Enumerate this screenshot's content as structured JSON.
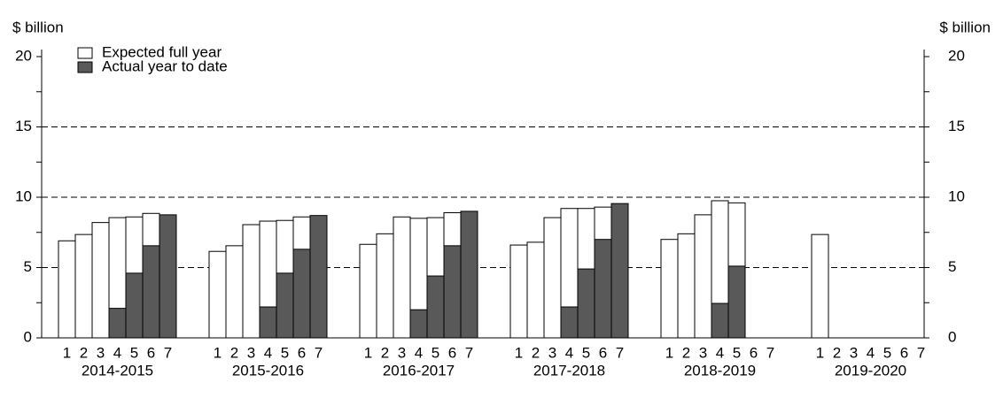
{
  "chart_data": {
    "type": "bar",
    "y_label": "$ billion",
    "y2_label": "$ billion",
    "groups": [
      "2014-2015",
      "2015-2016",
      "2016-2017",
      "2017-2018",
      "2018-2019",
      "2019-2020"
    ],
    "subcategories": [
      "1",
      "2",
      "3",
      "4",
      "5",
      "6",
      "7"
    ],
    "series": [
      {
        "name": "Expected full year",
        "color": "#ffffff",
        "values": [
          [
            6.9,
            7.35,
            8.2,
            8.55,
            8.6,
            8.85,
            null
          ],
          [
            6.15,
            6.55,
            8.05,
            8.3,
            8.35,
            8.6,
            null
          ],
          [
            6.65,
            7.4,
            8.6,
            8.5,
            8.55,
            8.9,
            null
          ],
          [
            6.6,
            6.8,
            8.55,
            9.2,
            9.2,
            9.3,
            null
          ],
          [
            7.0,
            7.4,
            8.75,
            9.75,
            9.6,
            null,
            null
          ],
          [
            7.35,
            null,
            null,
            null,
            null,
            null,
            null
          ]
        ]
      },
      {
        "name": "Actual year to date",
        "color": "#595959",
        "values": [
          [
            null,
            null,
            null,
            2.1,
            4.6,
            6.55,
            8.75
          ],
          [
            null,
            null,
            null,
            2.2,
            4.6,
            6.3,
            8.7
          ],
          [
            null,
            null,
            null,
            2.0,
            4.4,
            6.55,
            9.0
          ],
          [
            null,
            null,
            null,
            2.2,
            4.9,
            7.0,
            9.55
          ],
          [
            null,
            null,
            null,
            2.45,
            5.1,
            null,
            null
          ],
          [
            null,
            null,
            null,
            null,
            null,
            null,
            null
          ]
        ]
      }
    ],
    "ylim": [
      0,
      20
    ],
    "yticks": [
      0,
      5,
      10,
      15,
      20
    ],
    "yminorticks": [
      2.5,
      7.5,
      12.5,
      17.5
    ],
    "y2lim": [
      0,
      20
    ],
    "y2ticks": [
      0,
      5,
      10,
      15,
      20
    ],
    "grid": true,
    "legend": "top-left"
  }
}
